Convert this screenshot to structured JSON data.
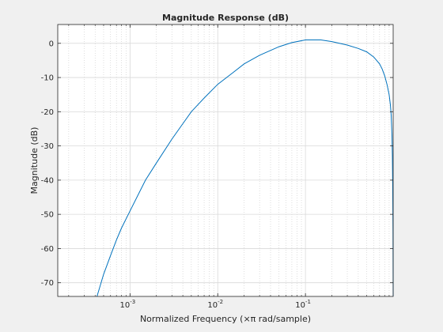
{
  "chart_data": {
    "type": "line",
    "title": "Magnitude Response (dB)",
    "xlabel": "Normalized Frequency (×π rad/sample)",
    "ylabel": "Magnitude (dB)",
    "xscale": "log",
    "xlim": [
      0.00015,
      1
    ],
    "ylim": [
      -74,
      5.5
    ],
    "x_ticks": [
      0.001,
      0.01,
      0.1
    ],
    "x_tick_labels": [
      {
        "base": "10",
        "exp": "-3"
      },
      {
        "base": "10",
        "exp": "-2"
      },
      {
        "base": "10",
        "exp": "-1"
      }
    ],
    "y_ticks": [
      0,
      -10,
      -20,
      -30,
      -40,
      -50,
      -60,
      -70
    ],
    "y_tick_labels": [
      "0",
      "-10",
      "-20",
      "-30",
      "-40",
      "-50",
      "-60",
      "-70"
    ],
    "grid": "on",
    "series": [
      {
        "color": "#0072bd",
        "x": [
          0.00042,
          0.0005,
          0.0006,
          0.0007,
          0.0008,
          0.001,
          0.0015,
          0.002,
          0.003,
          0.004,
          0.005,
          0.007,
          0.01,
          0.015,
          0.02,
          0.03,
          0.05,
          0.07,
          0.1,
          0.15,
          0.2,
          0.3,
          0.4,
          0.5,
          0.6,
          0.7,
          0.75,
          0.8,
          0.85,
          0.9,
          0.93,
          0.95,
          0.97,
          0.98,
          0.99,
          0.995,
          1.0
        ],
        "y": [
          -74,
          -67.5,
          -62,
          -57.5,
          -54,
          -49,
          -40,
          -35,
          -28,
          -23.5,
          -20,
          -16,
          -12,
          -8.5,
          -6,
          -3.5,
          -1,
          0.2,
          1,
          1,
          0.5,
          -0.5,
          -1.5,
          -2.5,
          -4,
          -6,
          -7.5,
          -9.5,
          -12,
          -15,
          -18,
          -21,
          -27,
          -33,
          -44,
          -55,
          -74
        ]
      }
    ]
  }
}
